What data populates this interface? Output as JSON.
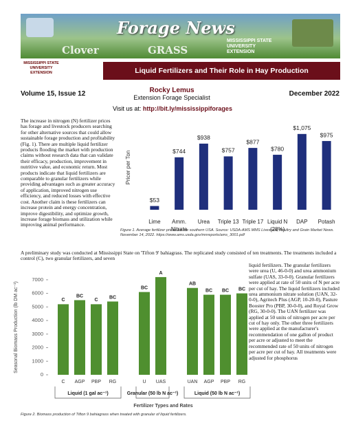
{
  "header": {
    "banner_title": "Forage News",
    "banner_org": "MISSISSIPPI STATE UNIVERSITY EXTENSION",
    "banner_word_left": "Clover",
    "banner_word_right": "GRASS",
    "logo": "MISSISSIPPI STATE UNIVERSITY EXTENSION",
    "title": "Liquid Fertilizers and Their Role in Hay Production",
    "issue": "Volume 15, Issue 12",
    "author": "Rocky Lemus",
    "author_role": "Extension Forage Specialist",
    "date": "December 2022",
    "visit_label": "Visit us at:",
    "visit_url": "http://bit.ly/mississippiforages"
  },
  "article": {
    "paragraph_1": "The increase in nitrogen (N) fertilizer prices has forage and livestock producers searching for other alternative sources that could allow sustainable forage production and profitability (Fig. 1). There are multiple liquid fertilizer products flooding the market with production claims without research data that can validate their efficacy, production, improvement in nutritive value, and economic return. Most products indicate that liquid fertilizers are comparable to granular fertilizers while providing advantages such as greater accuracy of application, improved nitrogen use efficiency, and reduced losses with effective cost. Another claim is these fertilizers can increase protein and energy concentration, improve digestibility, and optimize growth, increase forage biomass and utilization while improving animal performance.",
    "paragraph_2": "A preliminary study was conducted at Mississippi State on 'Tifton 9' bahiagrass. The replicated study consisted of ten treatments. The treatments included a control (C), two granular fertilizers, and seven",
    "paragraph_2_continued": "liquid fertilizers. The granular fertilizers were urea (U, 46-0-0) and urea ammonium sulfate (UAS, 33-0-0). Granular fertilizers were applied at rate of 50 units of N per acre per cut of hay. The liquid fertilizers included urea ammonium nitrate solution (UAN, 32-0-0), Agritech Plus (AGP, 10-20-0), Pasture Booster Pro (PBP, 30-0-0), and Royal Grow (RG, 30-0-0). The UAN fertilizer was applied at 50 units of nitrogen per acre per cut of hay only. The other three fertilizers were applied at the manufacturer's recommendation of one gallon of product per acre or adjusted to meet the recommended rate of 50 units of nitrogen per acre per cut of hay. All treatments were adjusted for phosphorus"
  },
  "chart_data": [
    {
      "type": "bar",
      "caption": "Figure 1. Average fertilizer prices for the southern USA. Source: USDA-AMS MMS Livestock, Poultry and Grain Market News. November 14, 2022. https://www.ams.usda.gov/mnreports/ams_3001.pdf",
      "y_label": "Pricer per Ton",
      "categories": [
        "Lime",
        "Amm. Nitrate",
        "Urea",
        "Triple 13",
        "Triple 17",
        "Liquid N (28%)",
        "DAP",
        "Potash"
      ],
      "values": [
        53,
        744,
        938,
        757,
        877,
        780,
        1075,
        975
      ],
      "value_labels": [
        "$53",
        "$744",
        "$938",
        "$757",
        "$877",
        "$780",
        "$1,075",
        "$975"
      ],
      "color": "#1f2f7c",
      "ylim": [
        0,
        1200
      ]
    },
    {
      "type": "grouped-bar",
      "caption": "Figure 2. Biomass production of Tifton 9 bahiagrass when treated with granular of liquid fertilizers.",
      "y_label": "Seasonal Biomass Production (lb DM ac⁻¹)",
      "x_label": "Fertilizer Types and Rates",
      "groups": [
        {
          "name": "Liquid (1 gal ac⁻¹)",
          "categories": [
            "C",
            "AGP",
            "PBP",
            "RG"
          ],
          "values": [
            5200,
            5500,
            5200,
            5400
          ],
          "value_labels": [
            "C",
            "BC",
            "C",
            "BC"
          ]
        },
        {
          "name": "Granular (50 lb N ac⁻¹)",
          "categories": [
            "U",
            "UAS"
          ],
          "values": [
            6100,
            7200
          ],
          "value_labels": [
            "BC",
            "A"
          ]
        },
        {
          "name": "Liquid (50 lb N ac⁻¹)",
          "categories": [
            "UAN",
            "AGP",
            "PBP",
            "RG"
          ],
          "values": [
            6400,
            5900,
            5900,
            6000
          ],
          "value_labels": [
            "AB",
            "BC",
            "BC",
            "BC"
          ]
        }
      ],
      "color": "#4f8f2f",
      "ylim": [
        0,
        7500
      ],
      "yticks": [
        0,
        1000,
        2000,
        3000,
        4000,
        5000,
        6000,
        7000
      ]
    }
  ]
}
